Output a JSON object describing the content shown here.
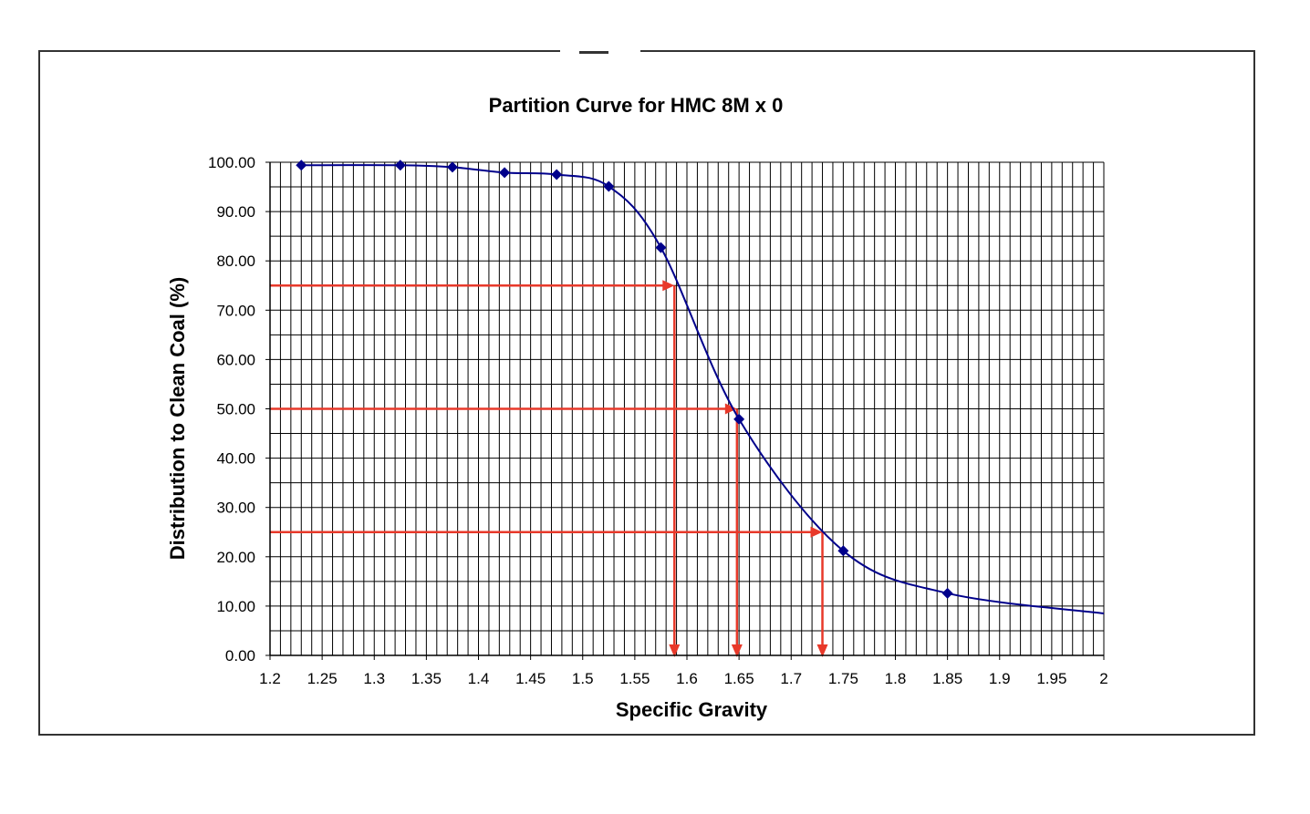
{
  "chart_data": {
    "type": "line",
    "title": "Partition Curve for HMC 8M x 0",
    "xlabel": "Specific Gravity",
    "ylabel": "Distribution to Clean Coal (%)",
    "xlim": [
      1.2,
      2.0
    ],
    "ylim": [
      0,
      100
    ],
    "x_ticks": [
      "1.2",
      "1.25",
      "1.3",
      "1.35",
      "1.4",
      "1.45",
      "1.5",
      "1.55",
      "1.6",
      "1.65",
      "1.7",
      "1.75",
      "1.8",
      "1.85",
      "1.9",
      "1.95",
      "2"
    ],
    "y_ticks": [
      "0.00",
      "10.00",
      "20.00",
      "30.00",
      "40.00",
      "50.00",
      "60.00",
      "70.00",
      "80.00",
      "90.00",
      "100.00"
    ],
    "grid": true,
    "series": [
      {
        "type": "scatter",
        "color": "#00008B",
        "marker": "diamond",
        "x": [
          1.23,
          1.325,
          1.375,
          1.425,
          1.475,
          1.525,
          1.575,
          1.65,
          1.75,
          1.85
        ],
        "y": [
          99.4,
          99.4,
          99.0,
          97.9,
          97.5,
          95.1,
          82.7,
          47.9,
          21.2,
          12.6
        ]
      },
      {
        "type": "smooth-line",
        "color": "#00008B",
        "x": [
          1.23,
          1.325,
          1.375,
          1.425,
          1.475,
          1.525,
          1.575,
          1.65,
          1.75,
          1.85,
          2.0
        ],
        "y": [
          99.4,
          99.4,
          99.0,
          97.9,
          97.5,
          95.1,
          82.7,
          47.9,
          21.2,
          12.6,
          8.5
        ]
      }
    ],
    "reference_lines": {
      "color": "#E8392A",
      "points": [
        {
          "y": 75,
          "x": 1.588
        },
        {
          "y": 50,
          "x": 1.648
        },
        {
          "y": 25,
          "x": 1.73
        }
      ]
    }
  }
}
